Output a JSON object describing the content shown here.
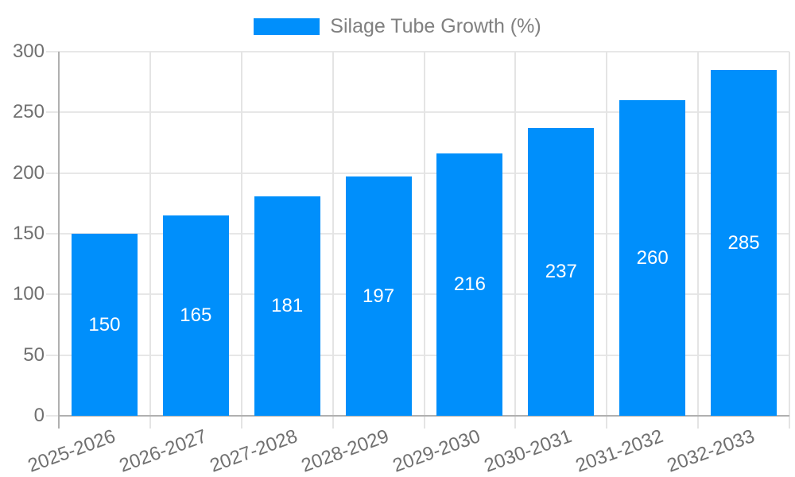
{
  "chart_data": {
    "type": "bar",
    "title": "",
    "legend": {
      "label": "Silage Tube Growth (%)",
      "position": "top"
    },
    "categories": [
      "2025-2026",
      "2026-2027",
      "2027-2028",
      "2028-2029",
      "2029-2030",
      "2030-2031",
      "2031-2032",
      "2032-2033"
    ],
    "values": [
      150,
      165,
      181,
      197,
      216,
      237,
      260,
      285
    ],
    "xlabel": "",
    "ylabel": "",
    "ylim": [
      0,
      300
    ],
    "yticks": [
      0,
      50,
      100,
      150,
      200,
      250,
      300
    ],
    "grid": true,
    "legend_position": "top",
    "colors": {
      "bar": "#008FFB",
      "bar_value_text": "#ffffff",
      "grid_line": "#e7e7e7",
      "axis_line": "#b0b0b0",
      "axis_text": "#707070",
      "legend_text": "#808080"
    }
  }
}
